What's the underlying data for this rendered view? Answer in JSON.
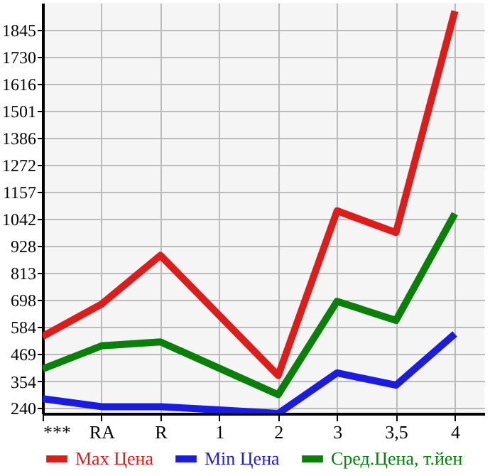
{
  "chart_data": {
    "type": "line",
    "categories": [
      "***",
      "RA",
      "R",
      "1",
      "2",
      "3",
      "3,5",
      "4"
    ],
    "series": [
      {
        "name": "Max Цена",
        "color": "#dd1c1c",
        "values": [
          544,
          681,
          888,
          633,
          378,
          1077,
          985,
          1925
        ]
      },
      {
        "name": "Min Цена",
        "color": "#1c1ce0",
        "values": [
          280,
          246,
          246,
          232,
          217,
          389,
          337,
          555
        ]
      },
      {
        "name": "Сред.Цена, т.йен",
        "color": "#0a800a",
        "values": [
          406,
          504,
          521,
          409,
          297,
          693,
          612,
          1065
        ]
      }
    ],
    "ylim": [
      217,
      1960
    ],
    "yticks": [
      240,
      354,
      469,
      584,
      698,
      813,
      928,
      1042,
      1157,
      1272,
      1386,
      1501,
      1616,
      1730,
      1845
    ],
    "grid": true,
    "legend": "bottom",
    "marker": "none",
    "line_style": "solid"
  }
}
